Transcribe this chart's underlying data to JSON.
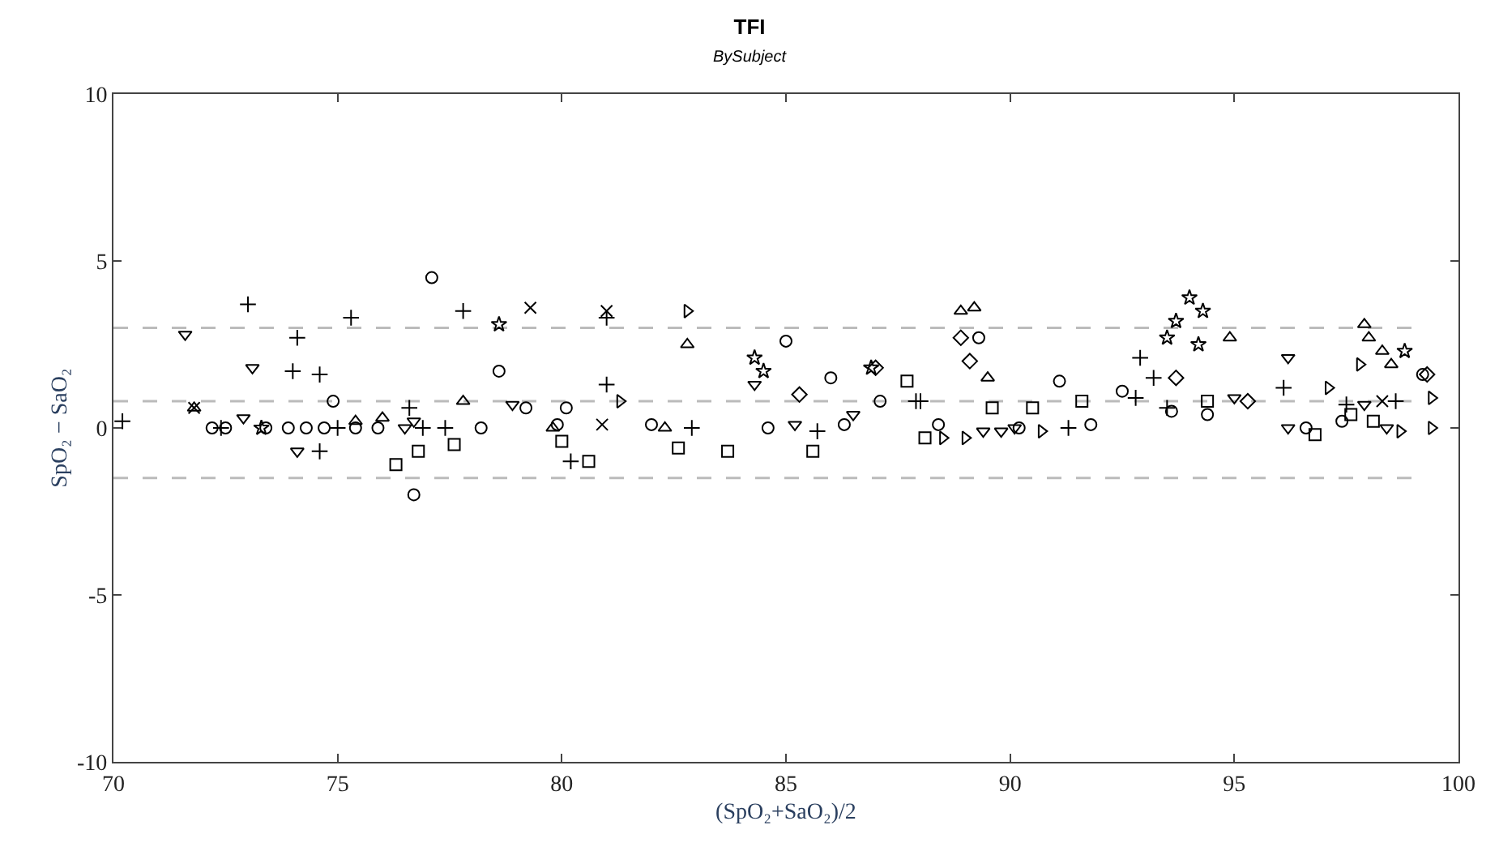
{
  "chart_data": {
    "type": "scatter",
    "title": "TFI",
    "subtitle": "BySubject",
    "xlabel": "(SpO₂+SaO₂)/2",
    "ylabel": "SpO₂ − SaO₂",
    "xlim": [
      70,
      100
    ],
    "xticks": [
      70,
      75,
      80,
      85,
      90,
      95,
      100
    ],
    "ylim": [
      -10,
      10
    ],
    "yticks": [
      -10,
      -5,
      0,
      5,
      10
    ],
    "grid": false,
    "series": [
      {
        "color": "#000000",
        "marker": "cross",
        "x": [
          70.2,
          73.0,
          75.3,
          74.1,
          74.0,
          74.6,
          77.8,
          81.0,
          76.9,
          87.9,
          91.3,
          92.8
        ],
        "values": [
          0.2,
          3.7,
          3.3,
          2.7,
          1.7,
          1.6,
          3.5,
          3.3,
          0.0,
          0.8,
          0.0,
          0.9
        ]
      },
      {
        "color": "#000000",
        "marker": "x",
        "x": [
          79.3,
          81.0,
          71.8,
          80.9,
          98.3
        ],
        "values": [
          3.6,
          3.5,
          0.6,
          0.1,
          0.8
        ]
      },
      {
        "color": "#000000",
        "marker": "triangle-down",
        "x": [
          71.6,
          73.1,
          72.9,
          74.1,
          76.7,
          78.9,
          84.3,
          85.2,
          86.5,
          89.4,
          89.8,
          96.2,
          96.2,
          97.9,
          98.4,
          76.5,
          95.0,
          90.1
        ],
        "values": [
          2.8,
          1.8,
          0.3,
          -0.7,
          0.2,
          0.7,
          1.3,
          0.1,
          0.4,
          -0.1,
          -0.1,
          2.1,
          0.0,
          0.7,
          0.0,
          0.0,
          0.9,
          0.0
        ]
      },
      {
        "color": "#000000",
        "marker": "triangle-up",
        "x": [
          71.8,
          75.4,
          76.0,
          77.8,
          82.8,
          88.9,
          89.2,
          89.5,
          94.9,
          97.9,
          98.0,
          98.3,
          98.5,
          82.3,
          79.8
        ],
        "values": [
          0.6,
          0.2,
          0.3,
          0.8,
          2.5,
          3.5,
          3.6,
          1.5,
          2.7,
          3.1,
          2.7,
          2.3,
          1.9,
          0.0,
          0.0
        ]
      },
      {
        "color": "#000000",
        "marker": "circle",
        "x": [
          77.1,
          76.7,
          74.9,
          78.6,
          79.2,
          80.1,
          85.0,
          86.0,
          87.1,
          89.3,
          91.1,
          92.5,
          93.6,
          94.4,
          99.2,
          97.4,
          72.2,
          72.5,
          73.4,
          73.9,
          74.3,
          74.7,
          75.4,
          75.9,
          78.2,
          79.9,
          82.0,
          84.6,
          86.3,
          88.4,
          90.2,
          91.8,
          96.6
        ],
        "values": [
          4.5,
          -2.0,
          0.8,
          1.7,
          0.6,
          0.6,
          2.6,
          1.5,
          0.8,
          2.7,
          1.4,
          1.1,
          0.5,
          0.4,
          1.6,
          0.2,
          0.0,
          0.0,
          0.0,
          0.0,
          0.0,
          0.0,
          0.0,
          0.0,
          0.0,
          0.1,
          0.1,
          0.0,
          0.1,
          0.1,
          0.0,
          0.1,
          0.0
        ]
      },
      {
        "color": "#000000",
        "marker": "square",
        "x": [
          76.3,
          76.8,
          77.6,
          80.0,
          80.6,
          82.6,
          83.7,
          85.6,
          87.7,
          89.6,
          90.5,
          91.6,
          96.8,
          97.6,
          98.1,
          94.4,
          88.1
        ],
        "values": [
          -1.1,
          -0.7,
          -0.5,
          -0.4,
          -1.0,
          -0.6,
          -0.7,
          -0.7,
          1.4,
          0.6,
          0.6,
          0.8,
          -0.2,
          0.4,
          0.2,
          0.8,
          -0.3
        ]
      },
      {
        "color": "#000000",
        "marker": "star",
        "x": [
          84.3,
          84.5,
          93.5,
          93.7,
          94.0,
          94.3,
          94.2,
          98.8,
          78.6,
          73.3,
          86.9
        ],
        "values": [
          2.1,
          1.7,
          2.7,
          3.2,
          3.9,
          3.5,
          2.5,
          2.3,
          3.1,
          0.0,
          1.8
        ]
      },
      {
        "color": "#000000",
        "marker": "cross",
        "x": [
          74.6,
          76.6,
          80.2,
          81.0,
          92.9,
          93.2,
          93.5,
          96.1,
          97.5,
          98.6,
          72.4,
          75.0,
          77.4,
          82.9,
          85.7,
          88.0
        ],
        "values": [
          -0.7,
          0.6,
          -1.0,
          1.3,
          2.1,
          1.5,
          0.6,
          1.2,
          0.7,
          0.8,
          0.0,
          0.0,
          0.0,
          0.0,
          -0.1,
          0.8
        ]
      },
      {
        "color": "#000000",
        "marker": "triangle-right",
        "x": [
          82.8,
          81.3,
          88.5,
          89.0,
          90.7,
          97.8,
          97.1,
          99.4,
          98.7,
          99.4
        ],
        "values": [
          3.5,
          0.8,
          -0.3,
          -0.3,
          -0.1,
          1.9,
          1.2,
          0.0,
          -0.1,
          0.9
        ]
      },
      {
        "color": "#000000",
        "marker": "diamond",
        "x": [
          88.9,
          89.1,
          93.7,
          99.3,
          95.3,
          87.0,
          85.3
        ],
        "values": [
          2.7,
          2.0,
          1.5,
          1.6,
          0.8,
          1.8,
          1.0
        ]
      }
    ],
    "ref_lines": [
      {
        "axis": "y",
        "value": 3.0,
        "color": "#bbbbbb",
        "line_style": "dashed"
      },
      {
        "axis": "y",
        "value": 0.8,
        "color": "#bbbbbb",
        "line_style": "dashed"
      },
      {
        "axis": "y",
        "value": -1.5,
        "color": "#bbbbbb",
        "line_style": "dashed"
      }
    ]
  }
}
